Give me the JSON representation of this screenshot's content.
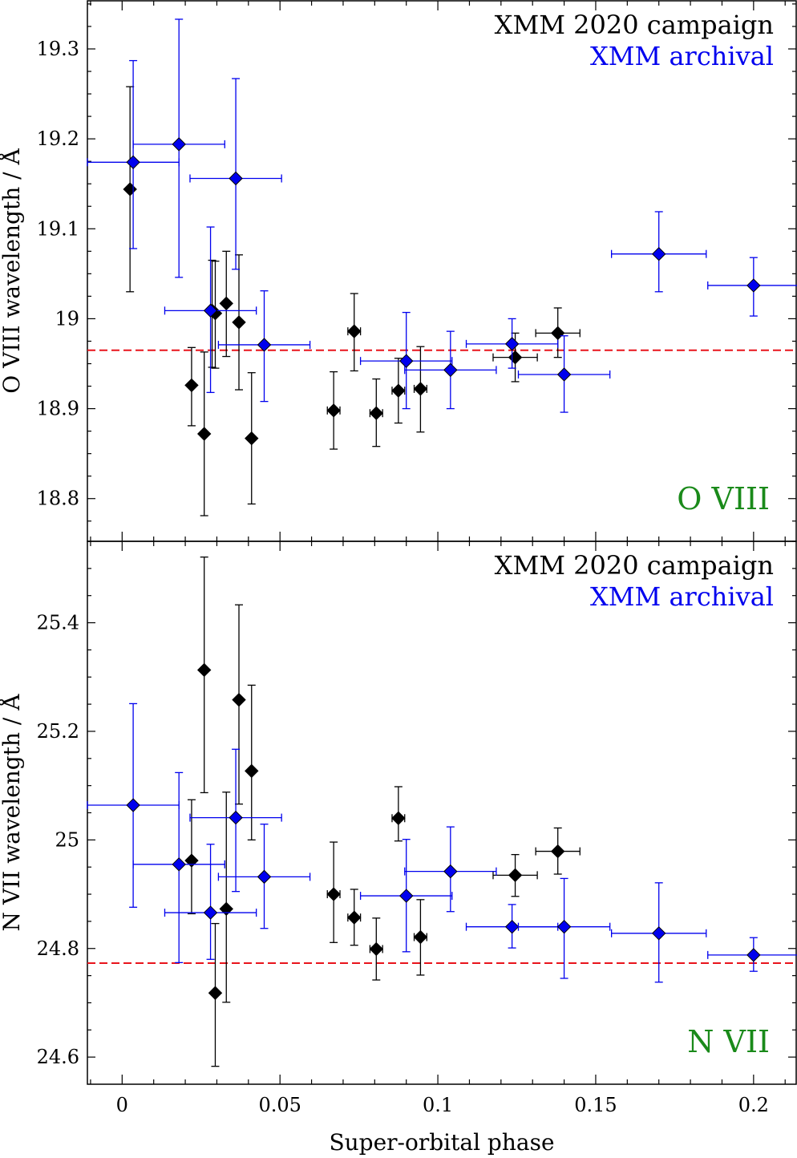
{
  "chart_data": [
    {
      "type": "scatter",
      "panel": "top",
      "ylabel": "O VIII wavelength / Å",
      "xlabel": "",
      "xlim": [
        -0.011,
        0.2135
      ],
      "ylim": [
        18.7525,
        19.3535
      ],
      "xticks": [
        0,
        0.05,
        0.1,
        0.15,
        0.2
      ],
      "yticks": [
        18.8,
        18.9,
        19,
        19.1,
        19.2,
        19.3
      ],
      "ytick_labels": [
        "18.8",
        "18.9",
        "19",
        "19.1",
        "19.2",
        "19.3"
      ],
      "reference_line": {
        "y": 18.965,
        "color": "#e8141c",
        "style": "dashed"
      },
      "panel_label": {
        "text": "O VIII",
        "color": "#1a8a1a"
      },
      "legend": [
        {
          "label": "XMM 2020 campaign",
          "color": "#000000"
        },
        {
          "label": "XMM archival",
          "color": "#0000ee"
        }
      ],
      "series": [
        {
          "name": "XMM 2020 campaign",
          "color": "#000000",
          "points": [
            {
              "x": 0.0025,
              "y": 19.144,
              "xerr": 0,
              "yerr_lo": 0.114,
              "yerr_hi": 0.114
            },
            {
              "x": 0.022,
              "y": 18.926,
              "xerr": 0,
              "yerr_lo": 0.045,
              "yerr_hi": 0.042
            },
            {
              "x": 0.026,
              "y": 18.872,
              "xerr": 0,
              "yerr_lo": 0.091,
              "yerr_hi": 0.091
            },
            {
              "x": 0.0285,
              "y": 19.009,
              "xerr": 0,
              "yerr_lo": 0.063,
              "yerr_hi": 0.056
            },
            {
              "x": 0.0295,
              "y": 19.006,
              "xerr": 0,
              "yerr_lo": 0.061,
              "yerr_hi": 0.058
            },
            {
              "x": 0.033,
              "y": 19.017,
              "xerr": 0,
              "yerr_lo": 0.059,
              "yerr_hi": 0.058
            },
            {
              "x": 0.037,
              "y": 18.996,
              "xerr": 0,
              "yerr_lo": 0.075,
              "yerr_hi": 0.075
            },
            {
              "x": 0.041,
              "y": 18.867,
              "xerr": 0,
              "yerr_lo": 0.073,
              "yerr_hi": 0.073
            },
            {
              "x": 0.067,
              "y": 18.898,
              "xerr": 0.002,
              "yerr_lo": 0.043,
              "yerr_hi": 0.043
            },
            {
              "x": 0.0735,
              "y": 18.986,
              "xerr": 0.002,
              "yerr_lo": 0.044,
              "yerr_hi": 0.042
            },
            {
              "x": 0.0805,
              "y": 18.895,
              "xerr": 0.002,
              "yerr_lo": 0.037,
              "yerr_hi": 0.038
            },
            {
              "x": 0.0875,
              "y": 18.92,
              "xerr": 0.002,
              "yerr_lo": 0.036,
              "yerr_hi": 0.036
            },
            {
              "x": 0.0945,
              "y": 18.922,
              "xerr": 0.002,
              "yerr_lo": 0.048,
              "yerr_hi": 0.047
            },
            {
              "x": 0.1245,
              "y": 18.957,
              "xerr": 0.007,
              "yerr_lo": 0.027,
              "yerr_hi": 0.027
            },
            {
              "x": 0.138,
              "y": 18.984,
              "xerr": 0.007,
              "yerr_lo": 0.027,
              "yerr_hi": 0.028
            }
          ]
        },
        {
          "name": "XMM archival",
          "color": "#0000ee",
          "points": [
            {
              "x": 0.0035,
              "y": 19.174,
              "xerr": 0.0145,
              "yerr_lo": 0.096,
              "yerr_hi": 0.113
            },
            {
              "x": 0.018,
              "y": 19.194,
              "xerr": 0.0145,
              "yerr_lo": 0.148,
              "yerr_hi": 0.139
            },
            {
              "x": 0.036,
              "y": 19.156,
              "xerr": 0.0145,
              "yerr_lo": 0.101,
              "yerr_hi": 0.111
            },
            {
              "x": 0.028,
              "y": 19.009,
              "xerr": 0.0145,
              "yerr_lo": 0.091,
              "yerr_hi": 0.093
            },
            {
              "x": 0.045,
              "y": 18.971,
              "xerr": 0.0145,
              "yerr_lo": 0.063,
              "yerr_hi": 0.06
            },
            {
              "x": 0.09,
              "y": 18.953,
              "xerr": 0.0145,
              "yerr_lo": 0.053,
              "yerr_hi": 0.054
            },
            {
              "x": 0.104,
              "y": 18.943,
              "xerr": 0.0145,
              "yerr_lo": 0.043,
              "yerr_hi": 0.043
            },
            {
              "x": 0.1235,
              "y": 18.972,
              "xerr": 0.0145,
              "yerr_lo": 0.027,
              "yerr_hi": 0.028
            },
            {
              "x": 0.14,
              "y": 18.938,
              "xerr": 0.0145,
              "yerr_lo": 0.042,
              "yerr_hi": 0.043
            },
            {
              "x": 0.17,
              "y": 19.072,
              "xerr": 0.015,
              "yerr_lo": 0.042,
              "yerr_hi": 0.047
            },
            {
              "x": 0.2,
              "y": 19.037,
              "xerr": 0.0145,
              "yerr_lo": 0.034,
              "yerr_hi": 0.031
            }
          ]
        }
      ]
    },
    {
      "type": "scatter",
      "panel": "bottom",
      "ylabel": "N VII wavelength / Å",
      "xlabel": "Super-orbital phase",
      "xlim": [
        -0.011,
        0.2135
      ],
      "ylim": [
        24.55,
        25.55
      ],
      "xticks": [
        0,
        0.05,
        0.1,
        0.15,
        0.2
      ],
      "xtick_labels": [
        "0",
        "0.05",
        "0.1",
        "0.15",
        "0.2"
      ],
      "yticks": [
        24.6,
        24.8,
        25,
        25.2,
        25.4
      ],
      "ytick_labels": [
        "24.6",
        "24.8",
        "25",
        "25.2",
        "25.4"
      ],
      "reference_line": {
        "y": 24.773,
        "color": "#e8141c",
        "style": "dashed"
      },
      "panel_label": {
        "text": "N VII",
        "color": "#1a8a1a"
      },
      "legend": [
        {
          "label": "XMM 2020 campaign",
          "color": "#000000"
        },
        {
          "label": "XMM archival",
          "color": "#0000ee"
        }
      ],
      "series": [
        {
          "name": "XMM 2020 campaign",
          "color": "#000000",
          "points": [
            {
              "x": 0.022,
              "y": 24.962,
              "xerr": 0,
              "yerr_lo": 0.098,
              "yerr_hi": 0.112
            },
            {
              "x": 0.026,
              "y": 25.313,
              "xerr": 0,
              "yerr_lo": 0.226,
              "yerr_hi": 0.208
            },
            {
              "x": 0.0295,
              "y": 24.718,
              "xerr": 0,
              "yerr_lo": 0.135,
              "yerr_hi": 0.128
            },
            {
              "x": 0.033,
              "y": 24.873,
              "xerr": 0,
              "yerr_lo": 0.172,
              "yerr_hi": 0.215
            },
            {
              "x": 0.037,
              "y": 25.258,
              "xerr": 0,
              "yerr_lo": 0.192,
              "yerr_hi": 0.175
            },
            {
              "x": 0.041,
              "y": 25.127,
              "xerr": 0,
              "yerr_lo": 0.127,
              "yerr_hi": 0.158
            },
            {
              "x": 0.067,
              "y": 24.9,
              "xerr": 0.002,
              "yerr_lo": 0.089,
              "yerr_hi": 0.096
            },
            {
              "x": 0.0735,
              "y": 24.857,
              "xerr": 0.002,
              "yerr_lo": 0.051,
              "yerr_hi": 0.052
            },
            {
              "x": 0.0805,
              "y": 24.799,
              "xerr": 0.002,
              "yerr_lo": 0.057,
              "yerr_hi": 0.057
            },
            {
              "x": 0.0875,
              "y": 25.04,
              "xerr": 0.002,
              "yerr_lo": 0.042,
              "yerr_hi": 0.058
            },
            {
              "x": 0.0945,
              "y": 24.821,
              "xerr": 0.002,
              "yerr_lo": 0.07,
              "yerr_hi": 0.069
            },
            {
              "x": 0.1245,
              "y": 24.935,
              "xerr": 0.007,
              "yerr_lo": 0.039,
              "yerr_hi": 0.038
            },
            {
              "x": 0.138,
              "y": 24.979,
              "xerr": 0.007,
              "yerr_lo": 0.042,
              "yerr_hi": 0.043
            }
          ]
        },
        {
          "name": "XMM archival",
          "color": "#0000ee",
          "points": [
            {
              "x": 0.0035,
              "y": 25.064,
              "xerr": 0.0145,
              "yerr_lo": 0.188,
              "yerr_hi": 0.187
            },
            {
              "x": 0.018,
              "y": 24.955,
              "xerr": 0.0145,
              "yerr_lo": 0.181,
              "yerr_hi": 0.169
            },
            {
              "x": 0.028,
              "y": 24.866,
              "xerr": 0.0145,
              "yerr_lo": 0.086,
              "yerr_hi": 0.126
            },
            {
              "x": 0.036,
              "y": 25.041,
              "xerr": 0.0145,
              "yerr_lo": 0.136,
              "yerr_hi": 0.126
            },
            {
              "x": 0.045,
              "y": 24.932,
              "xerr": 0.0145,
              "yerr_lo": 0.095,
              "yerr_hi": 0.097
            },
            {
              "x": 0.09,
              "y": 24.897,
              "xerr": 0.0145,
              "yerr_lo": 0.103,
              "yerr_hi": 0.104
            },
            {
              "x": 0.104,
              "y": 24.942,
              "xerr": 0.0145,
              "yerr_lo": 0.074,
              "yerr_hi": 0.082
            },
            {
              "x": 0.1235,
              "y": 24.84,
              "xerr": 0.0145,
              "yerr_lo": 0.039,
              "yerr_hi": 0.041
            },
            {
              "x": 0.14,
              "y": 24.84,
              "xerr": 0.0145,
              "yerr_lo": 0.095,
              "yerr_hi": 0.089
            },
            {
              "x": 0.17,
              "y": 24.828,
              "xerr": 0.015,
              "yerr_lo": 0.09,
              "yerr_hi": 0.093
            },
            {
              "x": 0.2,
              "y": 24.788,
              "xerr": 0.0145,
              "yerr_lo": 0.03,
              "yerr_hi": 0.032
            }
          ]
        }
      ]
    }
  ]
}
